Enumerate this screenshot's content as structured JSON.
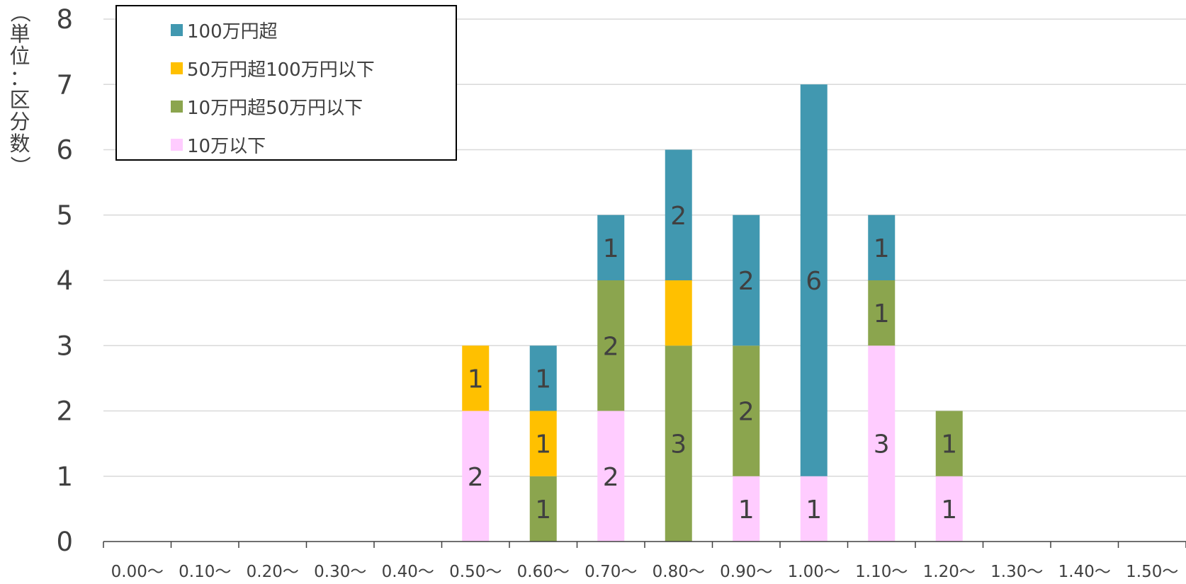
{
  "chart_data": {
    "type": "bar",
    "stacked": true,
    "categories": [
      "0.00〜",
      "0.10〜",
      "0.20〜",
      "0.30〜",
      "0.40〜",
      "0.50〜",
      "0.60〜",
      "0.70〜",
      "0.80〜",
      "0.90〜",
      "1.00〜",
      "1.10〜",
      "1.20〜",
      "1.30〜",
      "1.40〜",
      "1.50〜"
    ],
    "series": [
      {
        "name": "10万以下",
        "color": "#FFCCFF",
        "values": [
          0,
          0,
          0,
          0,
          0,
          2,
          0,
          2,
          0,
          1,
          1,
          3,
          1,
          0,
          0,
          0
        ]
      },
      {
        "name": "10万円超50万円以下",
        "color": "#8BA54E",
        "values": [
          0,
          0,
          0,
          0,
          0,
          0,
          1,
          2,
          3,
          2,
          0,
          1,
          1,
          0,
          0,
          0
        ]
      },
      {
        "name": "50万円超100万円以下",
        "color": "#FFC000",
        "values": [
          0,
          0,
          0,
          0,
          0,
          1,
          1,
          0,
          1,
          0,
          0,
          0,
          0,
          0,
          0,
          0
        ]
      },
      {
        "name": "100万円超",
        "color": "#4198B0",
        "values": [
          0,
          0,
          0,
          0,
          0,
          0,
          1,
          1,
          2,
          2,
          6,
          1,
          0,
          0,
          0,
          0
        ]
      }
    ],
    "data_labels": [
      [
        null,
        null,
        null,
        null,
        null,
        "2",
        null,
        "2",
        null,
        "1",
        "1",
        "3",
        "1",
        null,
        null,
        null
      ],
      [
        null,
        null,
        null,
        null,
        null,
        null,
        "1",
        "2",
        "3",
        "2",
        null,
        "1",
        "1",
        null,
        null,
        null
      ],
      [
        null,
        null,
        null,
        null,
        null,
        "1",
        "1",
        null,
        null,
        null,
        null,
        null,
        null,
        null,
        null,
        null
      ],
      [
        null,
        null,
        null,
        null,
        null,
        null,
        "1",
        "1",
        "2",
        "2",
        "6",
        "1",
        null,
        null,
        null,
        null
      ]
    ],
    "yticks": [
      "0",
      "1",
      "2",
      "3",
      "4",
      "5",
      "6",
      "7",
      "8"
    ],
    "ylim": [
      0,
      8
    ],
    "ylabel": "（単位：区分数）",
    "ylabel_chars": [
      "（",
      "単",
      "位",
      "：",
      "区",
      "分",
      "数",
      "）"
    ],
    "legend_order": [
      3,
      2,
      1,
      0
    ],
    "legend_position": "top-left",
    "grid": true,
    "colors": {
      "grid": "#D9D9D9",
      "axis": "#404040",
      "text": "#404040"
    }
  }
}
